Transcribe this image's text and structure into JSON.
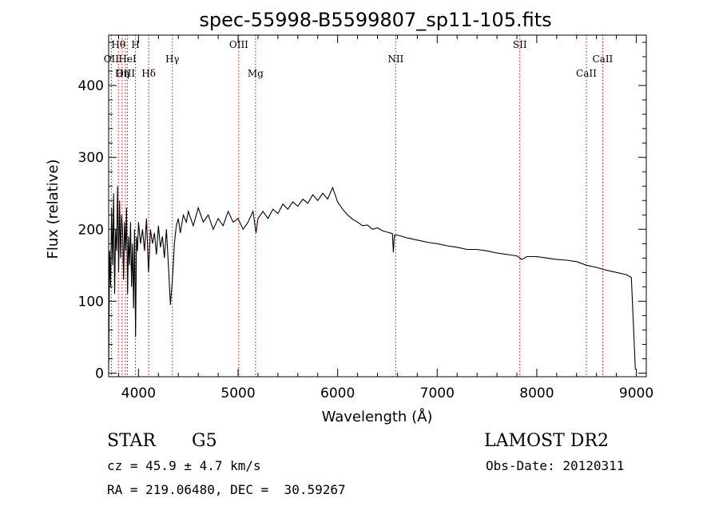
{
  "chart_data": {
    "type": "line",
    "title": "spec-55998-B5599807_sp11-105.fits",
    "xlabel": "Wavelength (Å)",
    "ylabel": "Flux (relative)",
    "xlim": [
      3700,
      9100
    ],
    "ylim": [
      -5,
      470
    ],
    "x_ticks": [
      4000,
      5000,
      6000,
      7000,
      8000,
      9000
    ],
    "y_ticks": [
      0,
      100,
      200,
      300,
      400
    ],
    "grid": false,
    "series": [
      {
        "values": [
          [
            3700,
            5
          ],
          [
            3710,
            170
          ],
          [
            3720,
            120
          ],
          [
            3730,
            230
          ],
          [
            3740,
            150
          ],
          [
            3750,
            250
          ],
          [
            3760,
            110
          ],
          [
            3770,
            200
          ],
          [
            3780,
            170
          ],
          [
            3790,
            260
          ],
          [
            3800,
            140
          ],
          [
            3810,
            240
          ],
          [
            3820,
            160
          ],
          [
            3830,
            220
          ],
          [
            3840,
            200
          ],
          [
            3850,
            130
          ],
          [
            3860,
            210
          ],
          [
            3870,
            170
          ],
          [
            3880,
            230
          ],
          [
            3890,
            110
          ],
          [
            3900,
            190
          ],
          [
            3910,
            150
          ],
          [
            3920,
            210
          ],
          [
            3930,
            120
          ],
          [
            3940,
            180
          ],
          [
            3950,
            90
          ],
          [
            3960,
            200
          ],
          [
            3970,
            50
          ],
          [
            3980,
            190
          ],
          [
            3990,
            170
          ],
          [
            4000,
            210
          ],
          [
            4020,
            180
          ],
          [
            4040,
            200
          ],
          [
            4060,
            170
          ],
          [
            4080,
            215
          ],
          [
            4100,
            140
          ],
          [
            4120,
            200
          ],
          [
            4140,
            180
          ],
          [
            4160,
            195
          ],
          [
            4180,
            165
          ],
          [
            4200,
            205
          ],
          [
            4220,
            175
          ],
          [
            4240,
            190
          ],
          [
            4260,
            160
          ],
          [
            4280,
            200
          ],
          [
            4300,
            150
          ],
          [
            4320,
            95
          ],
          [
            4340,
            130
          ],
          [
            4360,
            180
          ],
          [
            4380,
            205
          ],
          [
            4400,
            215
          ],
          [
            4420,
            195
          ],
          [
            4450,
            220
          ],
          [
            4480,
            210
          ],
          [
            4500,
            225
          ],
          [
            4550,
            205
          ],
          [
            4600,
            230
          ],
          [
            4650,
            210
          ],
          [
            4700,
            220
          ],
          [
            4750,
            200
          ],
          [
            4800,
            215
          ],
          [
            4850,
            205
          ],
          [
            4900,
            225
          ],
          [
            4950,
            210
          ],
          [
            5000,
            215
          ],
          [
            5050,
            200
          ],
          [
            5100,
            210
          ],
          [
            5150,
            225
          ],
          [
            5180,
            195
          ],
          [
            5200,
            215
          ],
          [
            5250,
            225
          ],
          [
            5300,
            215
          ],
          [
            5350,
            228
          ],
          [
            5400,
            222
          ],
          [
            5450,
            235
          ],
          [
            5500,
            228
          ],
          [
            5550,
            238
          ],
          [
            5600,
            232
          ],
          [
            5650,
            242
          ],
          [
            5700,
            236
          ],
          [
            5750,
            248
          ],
          [
            5800,
            240
          ],
          [
            5850,
            250
          ],
          [
            5900,
            242
          ],
          [
            5950,
            258
          ],
          [
            6000,
            238
          ],
          [
            6050,
            228
          ],
          [
            6100,
            220
          ],
          [
            6150,
            214
          ],
          [
            6200,
            210
          ],
          [
            6250,
            205
          ],
          [
            6300,
            206
          ],
          [
            6350,
            200
          ],
          [
            6400,
            202
          ],
          [
            6450,
            198
          ],
          [
            6500,
            196
          ],
          [
            6550,
            194
          ],
          [
            6560,
            168
          ],
          [
            6570,
            192
          ],
          [
            6600,
            192
          ],
          [
            6700,
            188
          ],
          [
            6800,
            185
          ],
          [
            6900,
            182
          ],
          [
            7000,
            180
          ],
          [
            7100,
            177
          ],
          [
            7200,
            175
          ],
          [
            7300,
            172
          ],
          [
            7400,
            172
          ],
          [
            7500,
            170
          ],
          [
            7600,
            167
          ],
          [
            7700,
            165
          ],
          [
            7800,
            163
          ],
          [
            7850,
            158
          ],
          [
            7900,
            162
          ],
          [
            8000,
            162
          ],
          [
            8100,
            160
          ],
          [
            8200,
            158
          ],
          [
            8300,
            157
          ],
          [
            8400,
            155
          ],
          [
            8500,
            150
          ],
          [
            8600,
            147
          ],
          [
            8700,
            143
          ],
          [
            8800,
            140
          ],
          [
            8900,
            137
          ],
          [
            8950,
            133
          ],
          [
            8990,
            5
          ]
        ]
      }
    ],
    "annotations": [
      {
        "label": "Hθ",
        "x": 3798,
        "row": 1
      },
      {
        "label": "H",
        "x": 3970,
        "row": 1
      },
      {
        "label": "OII",
        "x": 3727,
        "row": 2
      },
      {
        "label": "HeI",
        "x": 3889,
        "row": 2
      },
      {
        "label": "Hγ",
        "x": 4340,
        "row": 2
      },
      {
        "label": "OIII",
        "x": 3869,
        "row": 3
      },
      {
        "label": "Hη",
        "x": 3835,
        "row": 3
      },
      {
        "label": "Hδ",
        "x": 4102,
        "row": 3
      },
      {
        "label": "OIII",
        "x": 5007,
        "row": 1
      },
      {
        "label": "Mg",
        "x": 5175,
        "row": 3
      },
      {
        "label": "NII",
        "x": 6583,
        "row": 2
      },
      {
        "label": "SII",
        "x": 7830,
        "row": 1
      },
      {
        "label": "CaII",
        "x": 8662,
        "row": 2
      },
      {
        "label": "CaII",
        "x": 8498,
        "row": 3
      }
    ]
  },
  "info": {
    "class": "STAR",
    "subclass": "G5",
    "survey": "LAMOST DR2",
    "cz": "cz = 45.9 ± 4.7 km/s",
    "obs_date": "Obs-Date: 20120311",
    "coords": "RA = 219.06480, DEC =  30.59267"
  },
  "colors": {
    "spectrum": "#000000",
    "line_markers": "#cc0000"
  }
}
